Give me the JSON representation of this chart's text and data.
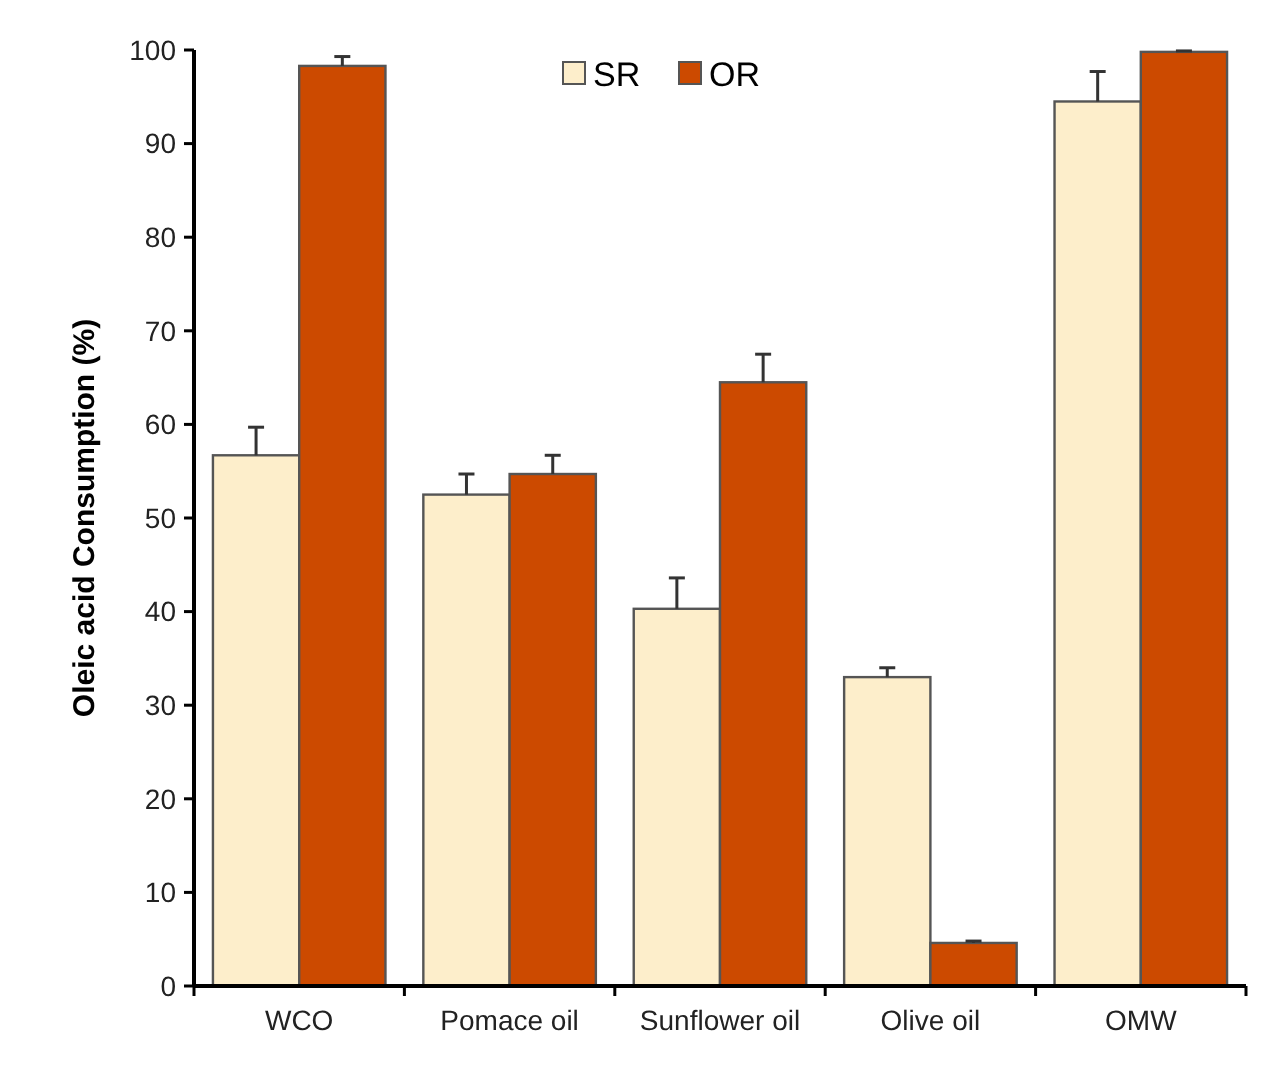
{
  "chart_data": {
    "type": "bar",
    "ylabel": "Oleic acid Consumption (%)",
    "categories": [
      "WCO",
      "Pomace oil",
      "Sunflower oil",
      "Olive oil",
      "OMW"
    ],
    "series": [
      {
        "name": "SR",
        "color": "#fdeecb",
        "values": [
          56.7,
          52.5,
          40.3,
          33.0,
          94.5
        ],
        "errors": [
          3.0,
          2.2,
          3.3,
          1.0,
          3.2
        ]
      },
      {
        "name": "OR",
        "color": "#cc4a00",
        "values": [
          98.3,
          54.7,
          64.5,
          4.6,
          99.8
        ],
        "errors": [
          1.0,
          2.0,
          3.0,
          0.2,
          0.1
        ]
      }
    ],
    "ylim": [
      0,
      100
    ],
    "yticks": [
      0,
      10,
      20,
      30,
      40,
      50,
      60,
      70,
      80,
      90,
      100
    ],
    "grid": false,
    "legend": "top"
  }
}
